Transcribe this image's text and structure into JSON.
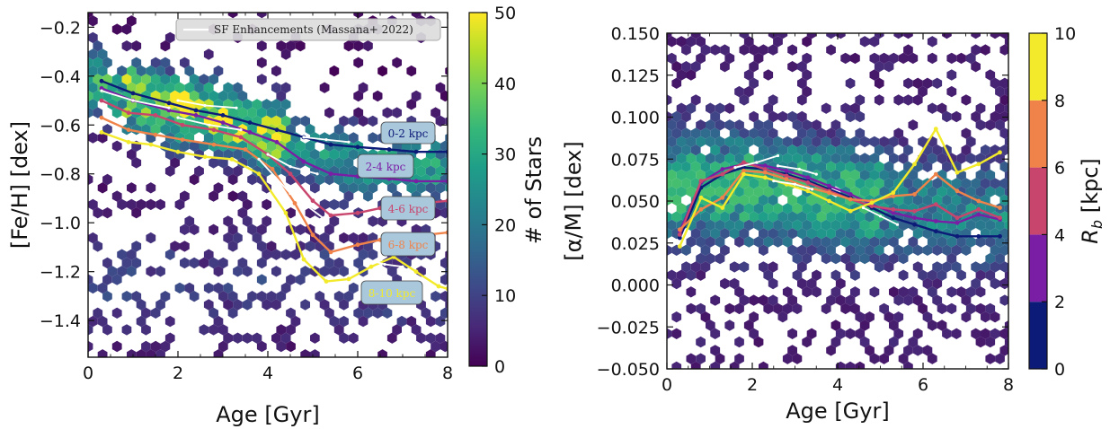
{
  "chart_data": [
    {
      "type": "hexbin",
      "xlabel": "Age [Gyr]",
      "ylabel": "[Fe/H] [dex]",
      "xlim": [
        0,
        8
      ],
      "ylim": [
        -1.55,
        -0.14
      ],
      "xticks": [
        0,
        2,
        4,
        6,
        8
      ],
      "xtick_labels": [
        "0",
        "2",
        "4",
        "6",
        "8"
      ],
      "yticks": [
        -1.4,
        -1.2,
        -1.0,
        -0.8,
        -0.6,
        -0.4,
        -0.2
      ],
      "ytick_labels": [
        "−1.4",
        "−1.2",
        "−1.0",
        "−0.8",
        "−0.6",
        "−0.4",
        "−0.2"
      ],
      "colorbar": {
        "label": "# of Stars",
        "range": [
          0,
          50
        ],
        "ticks": [
          0,
          10,
          20,
          30,
          40,
          50
        ],
        "tick_labels": [
          "0",
          "10",
          "20",
          "30",
          "40",
          "50"
        ],
        "colormap": [
          "#440154",
          "#482878",
          "#3e4989",
          "#31688e",
          "#26828e",
          "#1f9e89",
          "#35b779",
          "#6ece58",
          "#b5de2b",
          "#fde725"
        ]
      },
      "legend": {
        "label": "SF Enhancements (Massana+ 2022)",
        "location": "top-right",
        "color": "#ffffff"
      },
      "series": [
        {
          "name": "0-2 kpc",
          "label": "0-2 kpc",
          "color": "#0c1a78",
          "x": [
            0.3,
            1.0,
            1.8,
            2.4,
            3.0,
            3.6,
            4.2,
            4.8,
            5.4,
            6.0,
            6.7,
            7.3,
            8.0
          ],
          "y": [
            -0.42,
            -0.47,
            -0.51,
            -0.54,
            -0.56,
            -0.59,
            -0.62,
            -0.65,
            -0.68,
            -0.69,
            -0.7,
            -0.71,
            -0.71
          ]
        },
        {
          "name": "2-4 kpc",
          "label": "2-4 kpc",
          "color": "#7a1ea6",
          "x": [
            0.3,
            1.0,
            1.8,
            2.4,
            3.0,
            3.6,
            4.2,
            4.8,
            5.4,
            6.0,
            6.7,
            7.3,
            8.0
          ],
          "y": [
            -0.45,
            -0.5,
            -0.54,
            -0.56,
            -0.59,
            -0.63,
            -0.67,
            -0.75,
            -0.8,
            -0.81,
            -0.82,
            -0.83,
            -0.83
          ]
        },
        {
          "name": "4-6 kpc",
          "label": "4-6 kpc",
          "color": "#c8466e",
          "x": [
            0.3,
            0.9,
            1.5,
            2.1,
            2.8,
            3.4,
            4.0,
            4.5,
            5.0,
            5.4,
            6.0,
            6.5,
            7.0,
            7.5,
            8.0
          ],
          "y": [
            -0.5,
            -0.55,
            -0.56,
            -0.6,
            -0.62,
            -0.65,
            -0.72,
            -0.8,
            -0.91,
            -0.97,
            -0.96,
            -0.94,
            -0.93,
            -0.92,
            -0.91
          ]
        },
        {
          "name": "6-8 kpc",
          "label": "6-8 kpc",
          "color": "#f0834a",
          "x": [
            0.3,
            0.9,
            1.5,
            2.1,
            2.8,
            3.5,
            4.1,
            4.6,
            5.0,
            5.4,
            6.0,
            6.5,
            7.0,
            7.5,
            8.0
          ],
          "y": [
            -0.57,
            -0.62,
            -0.64,
            -0.66,
            -0.68,
            -0.7,
            -0.78,
            -0.92,
            -1.05,
            -1.12,
            -1.09,
            -1.07,
            -1.06,
            -1.05,
            -1.04
          ]
        },
        {
          "name": "8-10 kpc",
          "label": "8-10 kpc",
          "color": "#f2ea2a",
          "x": [
            0.3,
            0.9,
            1.4,
            2.0,
            2.6,
            3.2,
            3.8,
            4.4,
            4.8,
            5.3,
            5.8,
            6.3,
            6.8,
            7.3,
            7.8,
            8.0
          ],
          "y": [
            -0.63,
            -0.67,
            -0.68,
            -0.71,
            -0.73,
            -0.74,
            -0.8,
            -0.96,
            -1.15,
            -1.24,
            -1.23,
            -1.18,
            -1.14,
            -1.2,
            -1.26,
            -1.27
          ]
        }
      ],
      "sf_enhancements": [
        {
          "x": [
            0.3,
            1.0,
            1.8
          ],
          "y": [
            -0.46,
            -0.5,
            -0.53
          ]
        },
        {
          "x": [
            2.0,
            2.6,
            3.3
          ],
          "y": [
            -0.5,
            -0.52,
            -0.53
          ]
        },
        {
          "x": [
            2.0,
            2.7,
            3.4
          ],
          "y": [
            -0.57,
            -0.6,
            -0.62
          ]
        },
        {
          "x": [
            4.8,
            5.3,
            5.8
          ],
          "y": [
            -0.65,
            -0.66,
            -0.67
          ]
        },
        {
          "x": [
            4.0,
            4.5,
            5.1
          ],
          "y": [
            -0.72,
            -0.77,
            -0.8
          ]
        },
        {
          "x": [
            3.8,
            4.5,
            5.3
          ],
          "y": [
            -0.74,
            -0.88,
            -0.99
          ]
        },
        {
          "x": [
            6.2,
            6.6,
            7.0
          ],
          "y": [
            -1.15,
            -1.17,
            -1.18
          ]
        }
      ]
    },
    {
      "type": "hexbin",
      "xlabel": "Age [Gyr]",
      "ylabel": "[α/M] [dex]",
      "xlim": [
        0,
        8
      ],
      "ylim": [
        -0.05,
        0.15
      ],
      "xticks": [
        0,
        2,
        4,
        6,
        8
      ],
      "xtick_labels": [
        "0",
        "2",
        "4",
        "6",
        "8"
      ],
      "yticks": [
        -0.05,
        -0.025,
        0.0,
        0.025,
        0.05,
        0.075,
        0.1,
        0.125,
        0.15
      ],
      "ytick_labels": [
        "−0.050",
        "−0.025",
        "0.000",
        "0.025",
        "0.050",
        "0.075",
        "0.100",
        "0.125",
        "0.150"
      ],
      "colorbar": {
        "label_main": "R",
        "label_sub": "b",
        "label_unit": " [kpc]",
        "range": [
          0,
          10
        ],
        "ticks": [
          0,
          2,
          4,
          6,
          8,
          10
        ],
        "tick_labels": [
          "0",
          "2",
          "4",
          "6",
          "8",
          "10"
        ],
        "bands": [
          "#0c1a78",
          "#7a1ea6",
          "#c8466e",
          "#f0834a",
          "#f2ea2a"
        ]
      },
      "series": [
        {
          "name": "0-2 kpc",
          "color": "#0c1a78",
          "x": [
            0.3,
            0.8,
            1.3,
            1.8,
            2.3,
            2.8,
            3.3,
            3.8,
            4.3,
            4.8,
            5.3,
            5.8,
            6.3,
            6.8,
            7.3,
            7.8
          ],
          "y": [
            0.028,
            0.058,
            0.066,
            0.07,
            0.069,
            0.066,
            0.062,
            0.057,
            0.052,
            0.046,
            0.04,
            0.036,
            0.032,
            0.029,
            0.029,
            0.029
          ]
        },
        {
          "name": "2-4 kpc",
          "color": "#7a1ea6",
          "x": [
            0.3,
            0.8,
            1.3,
            1.8,
            2.3,
            2.8,
            3.3,
            3.8,
            4.3,
            4.8,
            5.3,
            5.8,
            6.3,
            6.8,
            7.3,
            7.8
          ],
          "y": [
            0.032,
            0.061,
            0.069,
            0.072,
            0.071,
            0.068,
            0.064,
            0.059,
            0.054,
            0.048,
            0.043,
            0.04,
            0.038,
            0.037,
            0.042,
            0.039
          ]
        },
        {
          "name": "4-6 kpc",
          "color": "#c8466e",
          "x": [
            0.3,
            0.8,
            1.3,
            1.8,
            2.3,
            2.8,
            3.3,
            3.8,
            4.3,
            4.8,
            5.3,
            5.8,
            6.3,
            6.8,
            7.3,
            7.8
          ],
          "y": [
            0.03,
            0.062,
            0.066,
            0.073,
            0.069,
            0.065,
            0.061,
            0.056,
            0.051,
            0.047,
            0.045,
            0.044,
            0.048,
            0.04,
            0.045,
            0.04
          ]
        },
        {
          "name": "6-8 kpc",
          "color": "#f0834a",
          "x": [
            0.3,
            0.8,
            1.3,
            1.8,
            2.3,
            2.8,
            3.3,
            3.8,
            4.3,
            4.8,
            5.3,
            5.8,
            6.3,
            6.8,
            7.3,
            7.8
          ],
          "y": [
            0.033,
            0.045,
            0.052,
            0.068,
            0.067,
            0.063,
            0.058,
            0.055,
            0.051,
            0.05,
            0.053,
            0.054,
            0.066,
            0.056,
            0.05,
            0.046
          ]
        },
        {
          "name": "8-10 kpc",
          "color": "#f2ea2a",
          "x": [
            0.3,
            0.8,
            1.3,
            1.8,
            2.3,
            2.8,
            3.3,
            3.8,
            4.3,
            4.8,
            5.3,
            5.8,
            6.3,
            6.8,
            7.3,
            7.8
          ],
          "y": [
            0.023,
            0.052,
            0.046,
            0.066,
            0.064,
            0.06,
            0.056,
            0.05,
            0.044,
            0.049,
            0.055,
            0.072,
            0.093,
            0.067,
            0.072,
            0.079
          ]
        }
      ],
      "sf_enhancements": [
        {
          "x": [
            1.6,
            2.1,
            2.6
          ],
          "y": [
            0.07,
            0.073,
            0.077
          ]
        },
        {
          "x": [
            2.6,
            3.1,
            3.5
          ],
          "y": [
            0.071,
            0.069,
            0.066
          ]
        },
        {
          "x": [
            2.5,
            3.0,
            3.4
          ],
          "y": [
            0.062,
            0.06,
            0.057
          ]
        },
        {
          "x": [
            4.6,
            5.0,
            5.4
          ],
          "y": [
            0.046,
            0.041,
            0.036
          ]
        }
      ]
    }
  ]
}
